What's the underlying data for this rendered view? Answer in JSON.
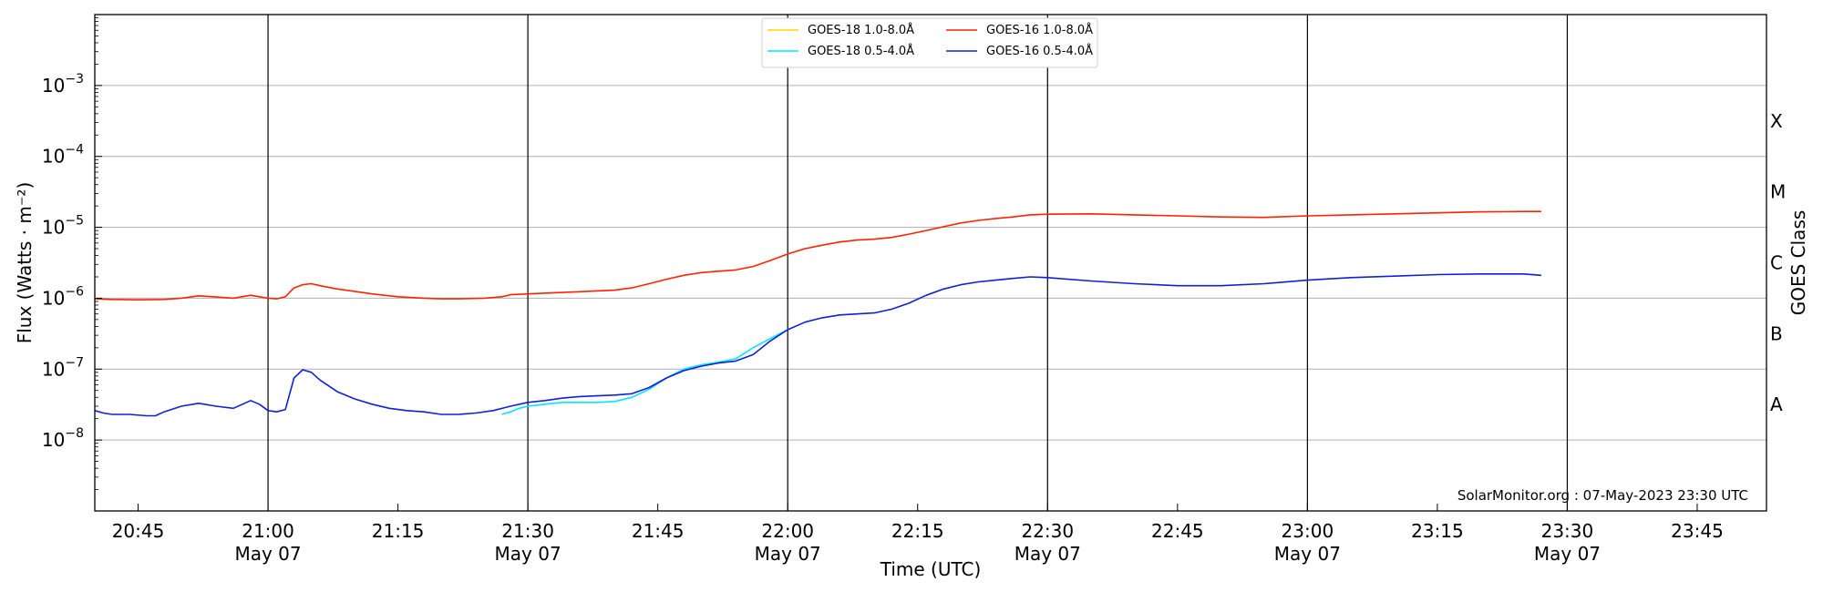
{
  "chart_data": {
    "type": "line",
    "title": "",
    "xlabel": "Time (UTC)",
    "ylabel": "Flux (Watts · m⁻²)",
    "ylabel_right": "GOES Class",
    "ylog": true,
    "xlim": [
      "20:40",
      "23:53"
    ],
    "ylim": [
      1e-09,
      0.01
    ],
    "y_ticks": [
      {
        "value": 1e-08,
        "mantissa": "10",
        "exp": "−8"
      },
      {
        "value": 1e-07,
        "mantissa": "10",
        "exp": "−7"
      },
      {
        "value": 1e-06,
        "mantissa": "10",
        "exp": "−6"
      },
      {
        "value": 1e-05,
        "mantissa": "10",
        "exp": "−5"
      },
      {
        "value": 0.0001,
        "mantissa": "10",
        "exp": "−4"
      },
      {
        "value": 0.001,
        "mantissa": "10",
        "exp": "−3"
      }
    ],
    "x_ticks": [
      {
        "time": "20:45",
        "label": "20:45",
        "sublabel": ""
      },
      {
        "time": "21:00",
        "label": "21:00",
        "sublabel": "May 07"
      },
      {
        "time": "21:15",
        "label": "21:15",
        "sublabel": ""
      },
      {
        "time": "21:30",
        "label": "21:30",
        "sublabel": "May 07"
      },
      {
        "time": "21:45",
        "label": "21:45",
        "sublabel": ""
      },
      {
        "time": "22:00",
        "label": "22:00",
        "sublabel": "May 07"
      },
      {
        "time": "22:15",
        "label": "22:15",
        "sublabel": ""
      },
      {
        "time": "22:30",
        "label": "22:30",
        "sublabel": "May 07"
      },
      {
        "time": "22:45",
        "label": "22:45",
        "sublabel": ""
      },
      {
        "time": "23:00",
        "label": "23:00",
        "sublabel": "May 07"
      },
      {
        "time": "23:15",
        "label": "23:15",
        "sublabel": ""
      },
      {
        "time": "23:30",
        "label": "23:30",
        "sublabel": "May 07"
      },
      {
        "time": "23:45",
        "label": "23:45",
        "sublabel": ""
      }
    ],
    "vertical_lines": [
      "21:00",
      "21:30",
      "22:00",
      "22:30",
      "23:00",
      "23:30"
    ],
    "class_labels": [
      {
        "label": "A",
        "level": 3.16e-08
      },
      {
        "label": "B",
        "level": 3.16e-07
      },
      {
        "label": "C",
        "level": 3.16e-06
      },
      {
        "label": "M",
        "level": 3.16e-05
      },
      {
        "label": "X",
        "level": 0.000316
      }
    ],
    "grid": "horizontal",
    "legend_position": "top-center",
    "series": [
      {
        "name": "GOES-18 1.0-8.0Å",
        "color": "#ffd700",
        "x": [],
        "y": []
      },
      {
        "name": "GOES-18 0.5-4.0Å",
        "color": "#00e5ff",
        "x": [
          "21:27",
          "21:28",
          "21:29",
          "21:30",
          "21:31",
          "21:32",
          "21:33",
          "21:34",
          "21:35",
          "21:36",
          "21:38",
          "21:40",
          "21:42",
          "21:44",
          "21:46",
          "21:48",
          "21:50",
          "21:52",
          "21:54",
          "21:56",
          "21:58",
          "22:00"
        ],
        "y": [
          2.3e-08,
          2.5e-08,
          2.8e-08,
          3e-08,
          3.1e-08,
          3.2e-08,
          3.3e-08,
          3.4e-08,
          3.4e-08,
          3.4e-08,
          3.4e-08,
          3.5e-08,
          4e-08,
          5.2e-08,
          7.5e-08,
          1e-07,
          1.15e-07,
          1.25e-07,
          1.4e-07,
          2e-07,
          2.7e-07,
          3.6e-07
        ]
      },
      {
        "name": "GOES-16 1.0-8.0Å",
        "color": "#ff2200",
        "x": [
          "20:40",
          "20:42",
          "20:45",
          "20:48",
          "20:50",
          "20:52",
          "20:54",
          "20:56",
          "20:58",
          "21:00",
          "21:01",
          "21:02",
          "21:03",
          "21:04",
          "21:05",
          "21:06",
          "21:08",
          "21:10",
          "21:12",
          "21:15",
          "21:18",
          "21:20",
          "21:22",
          "21:25",
          "21:27",
          "21:28",
          "21:30",
          "21:35",
          "21:40",
          "21:42",
          "21:44",
          "21:46",
          "21:48",
          "21:50",
          "21:52",
          "21:54",
          "21:56",
          "21:58",
          "22:00",
          "22:02",
          "22:04",
          "22:06",
          "22:08",
          "22:10",
          "22:12",
          "22:14",
          "22:16",
          "22:18",
          "22:20",
          "22:22",
          "22:24",
          "22:26",
          "22:28",
          "22:30",
          "22:35",
          "22:40",
          "22:45",
          "22:50",
          "22:55",
          "23:00",
          "23:05",
          "23:10",
          "23:15",
          "23:20",
          "23:25",
          "23:27"
        ],
        "y": [
          9.8e-07,
          9.6e-07,
          9.5e-07,
          9.6e-07,
          1e-06,
          1.08e-06,
          1.04e-06,
          1e-06,
          1.1e-06,
          1e-06,
          9.8e-07,
          1.05e-06,
          1.4e-06,
          1.55e-06,
          1.6e-06,
          1.5e-06,
          1.35e-06,
          1.25e-06,
          1.15e-06,
          1.05e-06,
          1e-06,
          9.8e-07,
          9.8e-07,
          1e-06,
          1.05e-06,
          1.12e-06,
          1.15e-06,
          1.22e-06,
          1.3e-06,
          1.4e-06,
          1.6e-06,
          1.85e-06,
          2.1e-06,
          2.3e-06,
          2.4e-06,
          2.5e-06,
          2.8e-06,
          3.4e-06,
          4.2e-06,
          5e-06,
          5.6e-06,
          6.2e-06,
          6.6e-06,
          6.8e-06,
          7.2e-06,
          8e-06,
          9e-06,
          1.02e-05,
          1.15e-05,
          1.25e-05,
          1.33e-05,
          1.4e-05,
          1.5e-05,
          1.53e-05,
          1.55e-05,
          1.5e-05,
          1.45e-05,
          1.4e-05,
          1.38e-05,
          1.45e-05,
          1.5e-05,
          1.55e-05,
          1.6e-05,
          1.65e-05,
          1.67e-05,
          1.67e-05
        ]
      },
      {
        "name": "GOES-16 0.5-4.0Å",
        "color": "#1020d8",
        "x": [
          "20:40",
          "20:41",
          "20:42",
          "20:44",
          "20:46",
          "20:47",
          "20:48",
          "20:50",
          "20:52",
          "20:54",
          "20:56",
          "20:58",
          "20:59",
          "21:00",
          "21:01",
          "21:02",
          "21:03",
          "21:04",
          "21:05",
          "21:06",
          "21:08",
          "21:10",
          "21:12",
          "21:14",
          "21:16",
          "21:18",
          "21:20",
          "21:22",
          "21:24",
          "21:26",
          "21:28",
          "21:30",
          "21:32",
          "21:34",
          "21:36",
          "21:38",
          "21:40",
          "21:42",
          "21:44",
          "21:46",
          "21:48",
          "21:50",
          "21:52",
          "21:54",
          "21:56",
          "21:58",
          "22:00",
          "22:02",
          "22:04",
          "22:06",
          "22:08",
          "22:10",
          "22:12",
          "22:14",
          "22:16",
          "22:18",
          "22:20",
          "22:22",
          "22:24",
          "22:26",
          "22:28",
          "22:30",
          "22:35",
          "22:40",
          "22:45",
          "22:50",
          "22:55",
          "23:00",
          "23:05",
          "23:10",
          "23:15",
          "23:20",
          "23:25",
          "23:27"
        ],
        "y": [
          2.6e-08,
          2.4e-08,
          2.3e-08,
          2.3e-08,
          2.2e-08,
          2.2e-08,
          2.5e-08,
          3e-08,
          3.3e-08,
          3e-08,
          2.8e-08,
          3.6e-08,
          3.2e-08,
          2.6e-08,
          2.5e-08,
          2.7e-08,
          7.5e-08,
          9.8e-08,
          9e-08,
          7e-08,
          4.8e-08,
          3.8e-08,
          3.2e-08,
          2.8e-08,
          2.6e-08,
          2.5e-08,
          2.3e-08,
          2.3e-08,
          2.4e-08,
          2.6e-08,
          3e-08,
          3.4e-08,
          3.6e-08,
          3.9e-08,
          4.1e-08,
          4.2e-08,
          4.3e-08,
          4.5e-08,
          5.5e-08,
          7.5e-08,
          9.5e-08,
          1.1e-07,
          1.22e-07,
          1.3e-07,
          1.6e-07,
          2.5e-07,
          3.6e-07,
          4.6e-07,
          5.3e-07,
          5.8e-07,
          6e-07,
          6.2e-07,
          7e-07,
          8.5e-07,
          1.1e-06,
          1.35e-06,
          1.55e-06,
          1.7e-06,
          1.8e-06,
          1.9e-06,
          2e-06,
          1.95e-06,
          1.75e-06,
          1.6e-06,
          1.5e-06,
          1.5e-06,
          1.6e-06,
          1.8e-06,
          1.95e-06,
          2.05e-06,
          2.15e-06,
          2.2e-06,
          2.2e-06,
          2.1e-06
        ]
      }
    ]
  },
  "watermark": "SolarMonitor.org : 07-May-2023 23:30 UTC"
}
